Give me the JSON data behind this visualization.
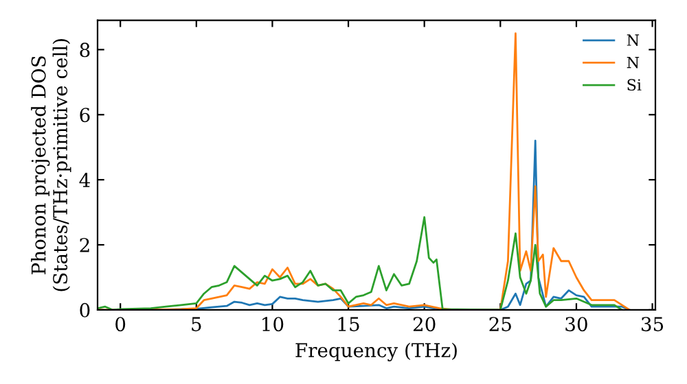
{
  "chart_data": {
    "type": "line",
    "xlabel": "Frequency (THz)",
    "ylabel": "Phonon projected DOS\n(States/THz·primitive cell)",
    "xlim": [
      -1.5,
      35.2
    ],
    "ylim": [
      0,
      8.9
    ],
    "xticks": [
      0,
      5,
      10,
      15,
      20,
      25,
      30,
      35
    ],
    "yticks": [
      0,
      2,
      4,
      6,
      8
    ],
    "legend": "top right",
    "grid": false,
    "marker": "none",
    "line_style": "solid",
    "series": [
      {
        "name": "N",
        "color": "#1f77b4",
        "x": [
          3,
          5,
          6,
          7,
          7.5,
          8,
          8.5,
          9,
          9.5,
          10,
          10.5,
          11,
          11.5,
          12,
          13,
          14,
          14.5,
          15,
          16,
          17,
          17.5,
          18,
          19,
          20,
          21,
          22,
          25,
          25.5,
          26,
          26.3,
          26.7,
          27,
          27.3,
          27.5,
          28,
          28.5,
          29,
          29.5,
          30,
          30.5,
          31,
          33,
          33.5
        ],
        "values": [
          0.01,
          0.03,
          0.08,
          0.12,
          0.25,
          0.22,
          0.15,
          0.2,
          0.15,
          0.18,
          0.4,
          0.35,
          0.35,
          0.3,
          0.25,
          0.3,
          0.35,
          0.1,
          0.12,
          0.15,
          0.05,
          0.1,
          0.05,
          0.1,
          0.02,
          0,
          0,
          0.1,
          0.5,
          0.15,
          0.8,
          0.9,
          5.2,
          1.0,
          0.1,
          0.4,
          0.35,
          0.6,
          0.45,
          0.4,
          0.1,
          0.1,
          0
        ]
      },
      {
        "name": "N",
        "color": "#ff7f0e",
        "x": [
          -1.5,
          0,
          4,
          5,
          5.5,
          6,
          7,
          7.5,
          8,
          8.5,
          9,
          9.5,
          10,
          10.5,
          11,
          11.5,
          12,
          12.5,
          13,
          13.5,
          14,
          14.5,
          15,
          16,
          16.5,
          17,
          17.5,
          18,
          19,
          20,
          21,
          22,
          25,
          25.5,
          26,
          26.3,
          26.7,
          27,
          27.3,
          27.5,
          27.8,
          28,
          28.5,
          29,
          29.5,
          30,
          30.5,
          31,
          32.5,
          33.5
        ],
        "values": [
          0,
          0,
          0.02,
          0.05,
          0.3,
          0.35,
          0.45,
          0.75,
          0.7,
          0.65,
          0.85,
          0.8,
          1.25,
          1.0,
          1.3,
          0.8,
          0.8,
          0.95,
          0.75,
          0.8,
          0.65,
          0.4,
          0.1,
          0.2,
          0.15,
          0.35,
          0.15,
          0.2,
          0.1,
          0.15,
          0.05,
          0,
          0,
          1.5,
          8.5,
          1.2,
          1.8,
          1.2,
          3.8,
          1.5,
          1.7,
          0.4,
          1.9,
          1.5,
          1.5,
          1.0,
          0.6,
          0.3,
          0.3,
          0
        ]
      },
      {
        "name": "Si",
        "color": "#2ca02c",
        "x": [
          -1.5,
          -1,
          -0.5,
          0,
          2,
          3,
          4,
          5,
          5.5,
          6,
          6.5,
          7,
          7.5,
          8,
          8.5,
          9,
          9.5,
          10,
          10.5,
          11,
          11.5,
          12,
          12.5,
          13,
          13.5,
          14,
          14.5,
          15,
          15.5,
          16,
          16.5,
          17,
          17.5,
          18,
          18.5,
          19,
          19.5,
          20,
          20.3,
          20.6,
          20.8,
          21.2,
          25,
          25.5,
          26,
          26.3,
          26.7,
          27,
          27.3,
          27.6,
          28,
          28.5,
          29,
          30,
          30.5,
          31,
          32.5,
          33
        ],
        "values": [
          0.05,
          0.1,
          0,
          0.02,
          0.05,
          0.1,
          0.15,
          0.2,
          0.5,
          0.7,
          0.75,
          0.85,
          1.35,
          1.15,
          0.95,
          0.75,
          1.05,
          0.9,
          0.95,
          1.05,
          0.7,
          0.85,
          1.2,
          0.75,
          0.8,
          0.6,
          0.6,
          0.2,
          0.4,
          0.45,
          0.55,
          1.35,
          0.6,
          1.1,
          0.75,
          0.8,
          1.5,
          2.85,
          1.6,
          1.45,
          1.55,
          0.02,
          0,
          0.9,
          2.35,
          1.0,
          0.5,
          0.9,
          2.0,
          0.5,
          0.1,
          0.3,
          0.3,
          0.35,
          0.25,
          0.15,
          0.15,
          0
        ]
      }
    ]
  }
}
